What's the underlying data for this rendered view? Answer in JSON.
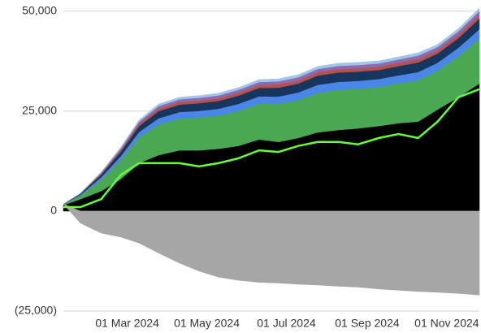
{
  "chart_data": {
    "type": "area",
    "x": [
      "2024-01-12",
      "2024-01-25",
      "2024-02-10",
      "2024-02-25",
      "2024-03-10",
      "2024-03-25",
      "2024-04-10",
      "2024-04-25",
      "2024-05-10",
      "2024-05-25",
      "2024-06-10",
      "2024-06-25",
      "2024-07-10",
      "2024-07-25",
      "2024-08-10",
      "2024-08-25",
      "2024-09-10",
      "2024-09-25",
      "2024-10-10",
      "2024-10-25",
      "2024-11-10",
      "2024-11-26"
    ],
    "xlim": [
      "2024-01-12",
      "2024-11-26"
    ],
    "xticks": [
      {
        "value": "2024-03-01",
        "label": "01 Mar 2024"
      },
      {
        "value": "2024-05-01",
        "label": "01 May 2024"
      },
      {
        "value": "2024-07-01",
        "label": "01 Jul 2024"
      },
      {
        "value": "2024-09-01",
        "label": "01 Sep 2024"
      },
      {
        "value": "2024-11-01",
        "label": "01 Nov 2024"
      }
    ],
    "ylim": [
      -25000,
      52000
    ],
    "yticks": [
      {
        "value": -25000,
        "label": "(25,000)"
      },
      0,
      {
        "value": 25000,
        "label": "25,000"
      },
      {
        "value": 50000,
        "label": "50,000"
      }
    ],
    "grid": true,
    "series": [
      {
        "color": "#000000",
        "values": [
          1500,
          3000,
          5000,
          8000,
          12000,
          14000,
          15200,
          15200,
          15600,
          16300,
          17900,
          17300,
          18300,
          19700,
          20300,
          20700,
          21300,
          22000,
          22400,
          25400,
          28500,
          31900
        ]
      },
      {
        "color": "#4aa853",
        "values": [
          180,
          900,
          2880,
          4800,
          6480,
          7680,
          7980,
          8220,
          8340,
          8760,
          9000,
          9480,
          9480,
          9900,
          10020,
          9900,
          9780,
          9960,
          10320,
          9780,
          10320,
          11340
        ]
      },
      {
        "color": "#4a86e8",
        "values": [
          36,
          180,
          576,
          960,
          1296,
          1536,
          1596,
          1644,
          1668,
          1752,
          1800,
          1896,
          1896,
          1980,
          2004,
          1980,
          1956,
          1992,
          2064,
          1956,
          2064,
          2268
        ]
      },
      {
        "color": "#17365d",
        "values": [
          42,
          210,
          672,
          1120,
          1512,
          1792,
          1862,
          1918,
          1946,
          2044,
          2100,
          2212,
          2212,
          2310,
          2338,
          2310,
          2282,
          2324,
          2408,
          2282,
          2408,
          2646
        ]
      },
      {
        "color": "#b5524a",
        "values": [
          15,
          75,
          240,
          400,
          540,
          640,
          665,
          685,
          695,
          730,
          750,
          790,
          790,
          825,
          835,
          825,
          815,
          830,
          860,
          815,
          860,
          945
        ]
      },
      {
        "color": "#8e6bb0",
        "values": [
          15,
          75,
          240,
          400,
          540,
          640,
          665,
          685,
          695,
          730,
          750,
          790,
          790,
          825,
          835,
          825,
          815,
          830,
          860,
          815,
          860,
          945
        ]
      },
      {
        "color": "#9fc5e8",
        "values": [
          12,
          60,
          192,
          320,
          432,
          512,
          532,
          548,
          556,
          584,
          600,
          632,
          632,
          660,
          668,
          660,
          652,
          664,
          688,
          652,
          688,
          756
        ]
      },
      {
        "color": "#a6a6a6",
        "values": [
          0,
          -3000,
          -5500,
          -6500,
          -8000,
          -10500,
          -13000,
          -15000,
          -16500,
          -17300,
          -17800,
          -18000,
          -18300,
          -18500,
          -18800,
          -19000,
          -19500,
          -19800,
          -20100,
          -20300,
          -20600,
          -21000
        ]
      },
      {
        "type": "line",
        "color": "#66ff33",
        "values": [
          1000,
          1000,
          3000,
          9000,
          12000,
          12000,
          12000,
          11200,
          12000,
          13200,
          15200,
          14800,
          16300,
          17300,
          17300,
          16700,
          18300,
          19300,
          18300,
          22400,
          28500,
          30500
        ]
      }
    ]
  }
}
